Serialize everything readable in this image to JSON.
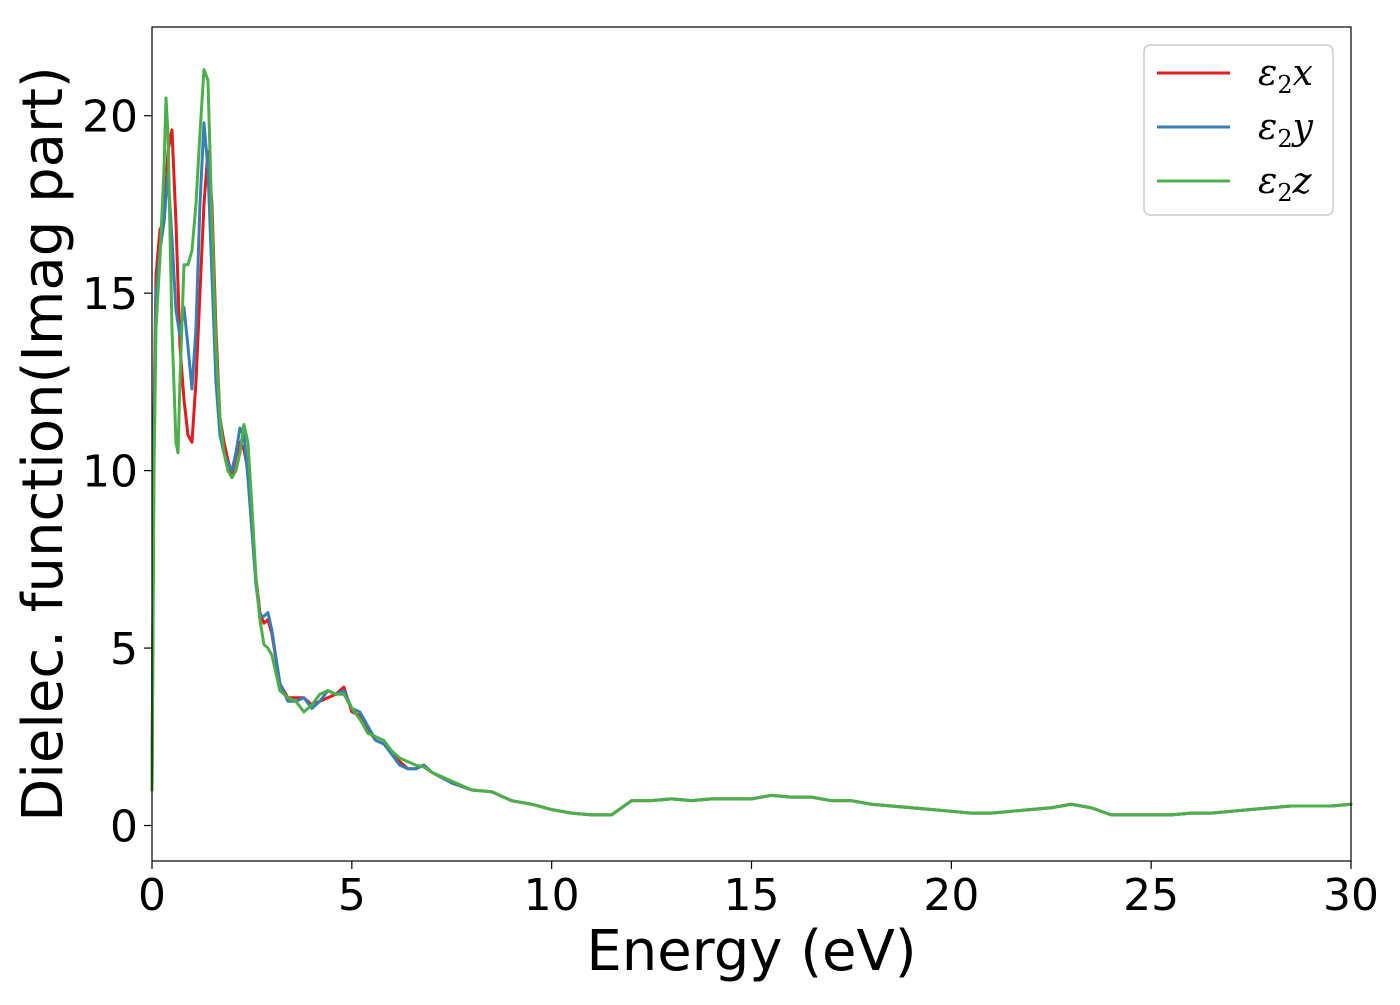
{
  "chart_data": {
    "type": "line",
    "title": "",
    "xlabel": "Energy (eV)",
    "ylabel": "Dielec. function(Imag part)",
    "xlim": [
      0,
      30
    ],
    "ylim": [
      -1,
      22.5
    ],
    "xticks": [
      0,
      5,
      10,
      15,
      20,
      25,
      30
    ],
    "xtick_labels": [
      "0",
      "5",
      "10",
      "15",
      "20",
      "25",
      "30"
    ],
    "yticks": [
      0,
      5,
      10,
      15,
      20
    ],
    "ytick_labels": [
      "0",
      "5",
      "10",
      "15",
      "20"
    ],
    "grid": false,
    "legend": {
      "position": "top-right"
    },
    "series": [
      {
        "name": "ε₂x",
        "legend_main": "ε",
        "legend_sub": "2",
        "legend_suffix": "x",
        "color": "#e41a1c",
        "x": [
          0,
          0.05,
          0.1,
          0.2,
          0.3,
          0.4,
          0.5,
          0.6,
          0.7,
          0.8,
          0.9,
          1.0,
          1.1,
          1.2,
          1.3,
          1.4,
          1.5,
          1.6,
          1.7,
          1.8,
          1.9,
          2.0,
          2.1,
          2.2,
          2.3,
          2.4,
          2.5,
          2.6,
          2.7,
          2.8,
          2.9,
          3.0,
          3.2,
          3.4,
          3.6,
          3.8,
          4.0,
          4.2,
          4.4,
          4.6,
          4.8,
          5.0,
          5.2,
          5.4,
          5.6,
          5.8,
          6.0,
          6.2,
          6.4,
          6.6,
          6.8,
          7.0,
          7.5,
          8.0,
          8.5,
          9.0,
          9.5,
          10,
          10.5,
          11,
          11.5,
          12,
          12.5,
          13,
          13.5,
          14,
          14.5,
          15,
          15.5,
          16,
          16.5,
          17,
          17.5,
          18,
          18.5,
          19,
          19.5,
          20,
          20.5,
          21,
          21.5,
          22,
          22.5,
          23,
          23.5,
          24,
          24.5,
          25,
          25.5,
          26,
          26.5,
          27,
          27.5,
          28,
          28.5,
          29,
          29.5,
          30
        ],
        "y": [
          1.0,
          11.5,
          15.5,
          16.8,
          17.0,
          19.0,
          19.6,
          17.0,
          13.5,
          12.0,
          11.0,
          10.8,
          12.5,
          15.0,
          17.5,
          19.0,
          17.5,
          14.0,
          11.5,
          10.8,
          10.3,
          9.9,
          10.4,
          10.8,
          10.6,
          10.0,
          8.5,
          7.0,
          6.0,
          5.7,
          5.8,
          5.4,
          4.0,
          3.6,
          3.6,
          3.6,
          3.4,
          3.5,
          3.6,
          3.7,
          3.9,
          3.2,
          3.1,
          2.7,
          2.4,
          2.3,
          2.1,
          1.8,
          1.6,
          1.6,
          1.7,
          1.5,
          1.2,
          1.0,
          0.95,
          0.7,
          0.6,
          0.45,
          0.35,
          0.3,
          0.3,
          0.7,
          0.7,
          0.75,
          0.7,
          0.75,
          0.75,
          0.75,
          0.85,
          0.8,
          0.8,
          0.7,
          0.7,
          0.6,
          0.55,
          0.5,
          0.45,
          0.4,
          0.35,
          0.35,
          0.4,
          0.45,
          0.5,
          0.6,
          0.5,
          0.3,
          0.3,
          0.3,
          0.3,
          0.35,
          0.35,
          0.4,
          0.45,
          0.5,
          0.55,
          0.55,
          0.55,
          0.6
        ]
      },
      {
        "name": "ε₂y",
        "legend_main": "ε",
        "legend_sub": "2",
        "legend_suffix": "y",
        "color": "#377eb8",
        "x": [
          0,
          0.05,
          0.1,
          0.2,
          0.3,
          0.4,
          0.5,
          0.6,
          0.7,
          0.8,
          0.9,
          1.0,
          1.1,
          1.2,
          1.3,
          1.4,
          1.5,
          1.6,
          1.7,
          1.8,
          1.9,
          2.0,
          2.1,
          2.2,
          2.3,
          2.4,
          2.5,
          2.6,
          2.7,
          2.8,
          2.9,
          3.0,
          3.2,
          3.4,
          3.6,
          3.8,
          4.0,
          4.2,
          4.4,
          4.6,
          4.8,
          5.0,
          5.2,
          5.4,
          5.6,
          5.8,
          6.0,
          6.2,
          6.4,
          6.6,
          6.8,
          7.0,
          7.5,
          8.0,
          8.5,
          9.0,
          9.5,
          10,
          10.5,
          11,
          11.5,
          12,
          12.5,
          13,
          13.5,
          14,
          14.5,
          15,
          15.5,
          16,
          16.5,
          17,
          17.5,
          18,
          18.5,
          19,
          19.5,
          20,
          20.5,
          21,
          21.5,
          22,
          22.5,
          23,
          23.5,
          24,
          24.5,
          25,
          25.5,
          26,
          26.5,
          27,
          27.5,
          28,
          28.5,
          29,
          29.5,
          30
        ],
        "y": [
          1.0,
          11.0,
          15.0,
          16.2,
          17.0,
          18.4,
          16.5,
          14.5,
          13.8,
          14.6,
          13.5,
          12.3,
          14.0,
          17.5,
          19.8,
          18.5,
          15.5,
          12.5,
          11.0,
          10.5,
          10.2,
          10.0,
          10.5,
          11.2,
          11.0,
          9.8,
          8.3,
          6.8,
          5.9,
          5.9,
          6.0,
          5.5,
          4.0,
          3.5,
          3.5,
          3.6,
          3.3,
          3.5,
          3.8,
          3.7,
          3.8,
          3.3,
          3.2,
          2.8,
          2.4,
          2.3,
          2.0,
          1.7,
          1.6,
          1.6,
          1.7,
          1.5,
          1.2,
          1.0,
          0.95,
          0.7,
          0.6,
          0.45,
          0.35,
          0.3,
          0.3,
          0.7,
          0.7,
          0.75,
          0.7,
          0.75,
          0.75,
          0.75,
          0.85,
          0.8,
          0.8,
          0.7,
          0.7,
          0.6,
          0.55,
          0.5,
          0.45,
          0.4,
          0.35,
          0.35,
          0.4,
          0.45,
          0.5,
          0.6,
          0.5,
          0.3,
          0.3,
          0.3,
          0.3,
          0.35,
          0.35,
          0.4,
          0.45,
          0.5,
          0.55,
          0.55,
          0.55,
          0.6
        ]
      },
      {
        "name": "ε₂z",
        "legend_main": "ε",
        "legend_sub": "2",
        "legend_suffix": "z",
        "color": "#4daf4a",
        "x": [
          0,
          0.05,
          0.1,
          0.2,
          0.3,
          0.35,
          0.4,
          0.5,
          0.6,
          0.65,
          0.7,
          0.8,
          0.9,
          1.0,
          1.1,
          1.2,
          1.3,
          1.4,
          1.5,
          1.6,
          1.7,
          1.8,
          1.9,
          2.0,
          2.1,
          2.2,
          2.3,
          2.4,
          2.5,
          2.6,
          2.7,
          2.8,
          2.9,
          3.0,
          3.2,
          3.4,
          3.6,
          3.8,
          4.0,
          4.2,
          4.4,
          4.6,
          4.8,
          5.0,
          5.2,
          5.4,
          5.6,
          5.8,
          6.0,
          6.2,
          6.4,
          6.6,
          6.8,
          7.0,
          7.5,
          8.0,
          8.5,
          9.0,
          9.5,
          10,
          10.5,
          11,
          11.5,
          12,
          12.5,
          13,
          13.5,
          14,
          14.5,
          15,
          15.5,
          16,
          16.5,
          17,
          17.5,
          18,
          18.5,
          19,
          19.5,
          20,
          20.5,
          21,
          21.5,
          22,
          22.5,
          23,
          23.5,
          24,
          24.5,
          25,
          25.5,
          26,
          26.5,
          27,
          27.5,
          28,
          28.5,
          29,
          29.5,
          30
        ],
        "y": [
          1.0,
          10.0,
          14.0,
          16.0,
          18.5,
          20.5,
          19.5,
          14.0,
          10.8,
          10.5,
          12.5,
          15.8,
          15.8,
          16.2,
          17.5,
          19.5,
          21.3,
          21.0,
          17.0,
          13.5,
          11.5,
          10.5,
          10.0,
          9.8,
          10.0,
          10.5,
          11.3,
          10.8,
          9.0,
          7.0,
          5.8,
          5.1,
          5.0,
          4.8,
          3.8,
          3.6,
          3.5,
          3.2,
          3.4,
          3.7,
          3.8,
          3.7,
          3.7,
          3.3,
          3.0,
          2.6,
          2.5,
          2.4,
          2.1,
          1.9,
          1.8,
          1.7,
          1.65,
          1.5,
          1.25,
          1.0,
          0.95,
          0.7,
          0.6,
          0.45,
          0.35,
          0.3,
          0.3,
          0.7,
          0.7,
          0.75,
          0.7,
          0.75,
          0.75,
          0.75,
          0.85,
          0.8,
          0.8,
          0.7,
          0.7,
          0.6,
          0.55,
          0.5,
          0.45,
          0.4,
          0.35,
          0.35,
          0.4,
          0.45,
          0.5,
          0.6,
          0.5,
          0.3,
          0.3,
          0.3,
          0.3,
          0.35,
          0.35,
          0.4,
          0.45,
          0.5,
          0.55,
          0.55,
          0.55,
          0.6
        ]
      }
    ]
  }
}
